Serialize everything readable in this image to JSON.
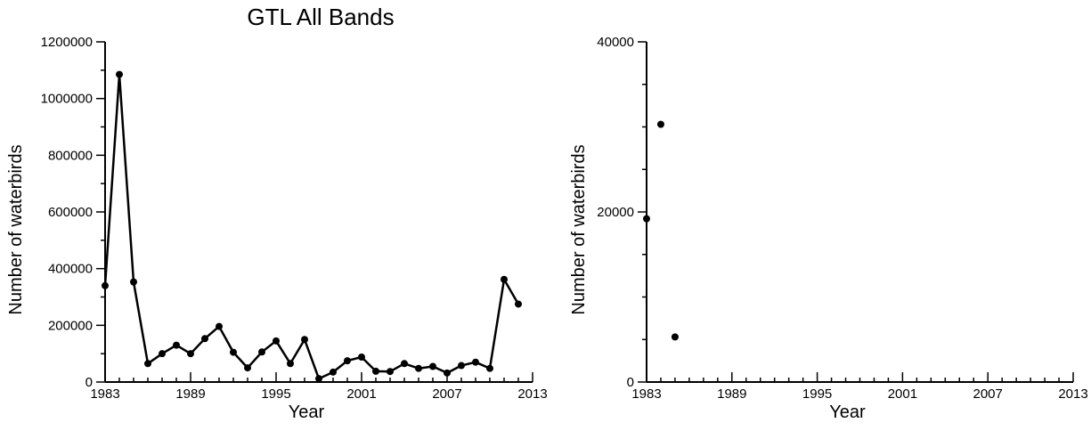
{
  "chart_data": [
    {
      "type": "line",
      "title": "GTL All Bands",
      "xlabel": "Year",
      "ylabel": "Number of waterbirds",
      "xlim": [
        1983,
        2013
      ],
      "ylim": [
        0,
        1200000
      ],
      "xticks": [
        1983,
        1989,
        1995,
        2001,
        2007,
        2013
      ],
      "xtick_labels": [
        "1983",
        "1989",
        "1995",
        "2001",
        "2007",
        "2013"
      ],
      "yticks": [
        0,
        200000,
        400000,
        600000,
        800000,
        1000000,
        1200000
      ],
      "ytick_labels": [
        "0",
        "200000",
        "400000",
        "600000",
        "800000",
        "1000000",
        "1200000"
      ],
      "series": [
        {
          "x": [
            1983,
            1984,
            1985,
            1986,
            1987,
            1988,
            1989,
            1990,
            1991,
            1992,
            1993,
            1994,
            1995,
            1996,
            1997,
            1998,
            1999,
            2000,
            2001,
            2002,
            2003,
            2004,
            2005,
            2006,
            2007,
            2008,
            2009,
            2010,
            2011,
            2012
          ],
          "y": [
            340000,
            1085000,
            353000,
            65000,
            100000,
            130000,
            100000,
            153000,
            196000,
            105000,
            50000,
            106000,
            145000,
            65000,
            150000,
            12000,
            35000,
            75000,
            88000,
            38000,
            37000,
            65000,
            48000,
            55000,
            32000,
            58000,
            70000,
            48000,
            362000,
            275000
          ]
        }
      ],
      "grid": false,
      "legend": false
    },
    {
      "type": "scatter",
      "title": "",
      "xlabel": "Year",
      "ylabel": "Number of waterbirds",
      "xlim": [
        1983,
        2013
      ],
      "ylim": [
        0,
        40000
      ],
      "xticks": [
        1983,
        1989,
        1995,
        2001,
        2007,
        2013
      ],
      "xtick_labels": [
        "1983",
        "1989",
        "1995",
        "2001",
        "2007",
        "2013"
      ],
      "yticks": [
        0,
        20000,
        40000
      ],
      "ytick_labels": [
        "0",
        "20000",
        "40000"
      ],
      "series": [
        {
          "x": [
            1983,
            1984,
            1985
          ],
          "y": [
            19200,
            30300,
            5300
          ]
        }
      ],
      "grid": false,
      "legend": false
    }
  ]
}
